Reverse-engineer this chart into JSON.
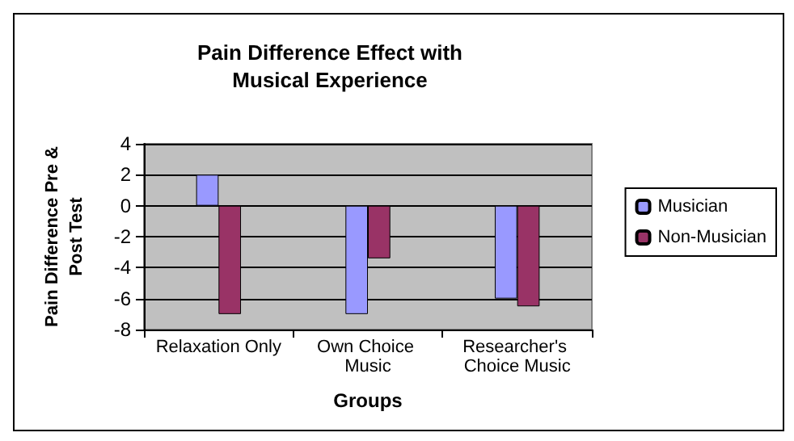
{
  "chart_data": {
    "type": "bar",
    "title": "Pain Difference Effect with\nMusical Experience",
    "xlabel": "Groups",
    "ylabel": "Pain Difference Pre &\nPost Test",
    "categories": [
      "Relaxation Only",
      "Own Choice Music",
      "Researcher's Choice Music"
    ],
    "series": [
      {
        "name": "Musician",
        "color": "#9999ff",
        "values": [
          2,
          -7,
          -6
        ]
      },
      {
        "name": "Non-Musician",
        "color": "#993366",
        "values": [
          -7,
          -3.4,
          -6.5
        ]
      }
    ],
    "ylim": [
      -8,
      4
    ],
    "yticks": [
      -8,
      -6,
      -4,
      -2,
      0,
      2,
      4
    ],
    "grid": "y",
    "legend": "right"
  }
}
